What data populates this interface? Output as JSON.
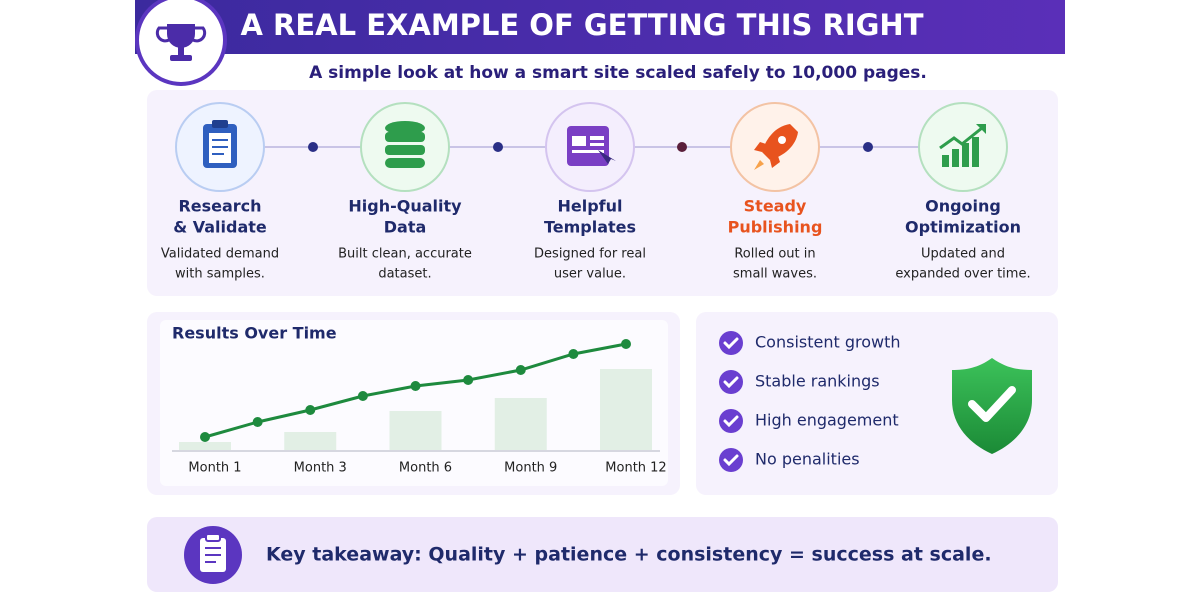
{
  "header": {
    "title": "A REAL EXAMPLE OF GETTING THIS RIGHT",
    "subtitle": "A simple look at how a smart site scaled safely to 10,000 pages."
  },
  "steps": [
    {
      "title_lines": [
        "Research",
        "& Validate"
      ],
      "description_lines": [
        "Validated demand",
        "with samples."
      ],
      "color": "#1f2a6b"
    },
    {
      "title_lines": [
        "High-Quality",
        "Data"
      ],
      "description_lines": [
        "Built clean, accurate",
        "dataset."
      ],
      "color": "#1f2a6b"
    },
    {
      "title_lines": [
        "Helpful",
        "Templates"
      ],
      "description_lines": [
        "Designed for real",
        "user value."
      ],
      "color": "#1f2a6b"
    },
    {
      "title_lines": [
        "Steady",
        "Publishing"
      ],
      "description_lines": [
        "Rolled out in",
        "small waves."
      ],
      "color": "#e8531e"
    },
    {
      "title_lines": [
        "Ongoing",
        "Optimization"
      ],
      "description_lines": [
        "Updated and",
        "expanded over time."
      ],
      "color": "#1f2a6b"
    }
  ],
  "results_chart": {
    "type": "line",
    "title": "Results Over Time",
    "categories": [
      "Month 1",
      null,
      "Month 3",
      null,
      "Month 6",
      null,
      "Month 9",
      null,
      "Month 12"
    ],
    "series": [
      {
        "color": "#1e8a3e",
        "values": [
          13,
          28,
          40,
          54,
          64,
          70,
          80,
          96,
          106
        ]
      }
    ],
    "bars": {
      "color": "#e2efe5",
      "values": [
        8,
        null,
        18,
        null,
        39,
        null,
        52,
        null,
        81
      ]
    },
    "ylim": [
      0,
      120
    ]
  },
  "benefits": [
    "Consistent growth",
    "Stable rankings",
    "High engagement",
    "No penalities"
  ],
  "takeaway": "Key takeaway: Quality + patience + consistency = success at scale."
}
